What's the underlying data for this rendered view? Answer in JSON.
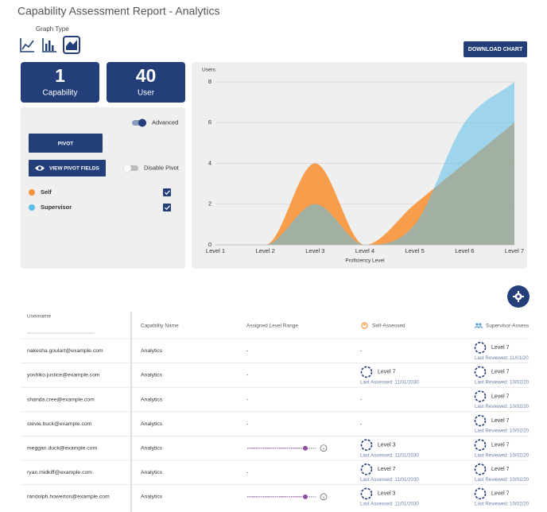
{
  "header": {
    "title": "Capability Assessment Report - Analytics",
    "graph_type_label": "Graph Type",
    "download_button": "DOWNLOAD CHART"
  },
  "stats": [
    {
      "value": 1,
      "label": "Capability"
    },
    {
      "value": 40,
      "label": "User"
    }
  ],
  "controls": {
    "advanced": "Advanced",
    "pivot": "PIVOT",
    "view_pivot_fields": "VIEW PIVOT FIELDS",
    "disable_pivot": "Disable Pivot"
  },
  "chart_data": {
    "type": "area",
    "y_label": "Users",
    "x_label": "Proficiency Level",
    "categories": [
      "Level 1",
      "Level 2",
      "Level 3",
      "Level 4",
      "Level 5",
      "Level 6",
      "Level 7"
    ],
    "series": [
      {
        "name": "Self",
        "color": "#f7943a",
        "values": [
          0,
          0,
          4,
          0,
          2,
          4,
          6
        ]
      },
      {
        "name": "Supervisor",
        "color": "#5bbfea",
        "values": [
          0,
          0,
          2,
          0,
          1,
          6,
          8
        ]
      }
    ],
    "ylim": [
      0,
      8
    ],
    "yticks": [
      0,
      2,
      4,
      6,
      8
    ],
    "grid": true
  },
  "table": {
    "columns": [
      "Username",
      "Capability Name",
      "Assigned Level Range",
      "Self-Assessed",
      "Supervisor-Assesse"
    ],
    "rows": [
      {
        "username": "nakesha.goulart@example.com",
        "capability": "Analytics",
        "range": "-",
        "self": "-",
        "supervisor": {
          "level": "Level 7",
          "date": "Last Reviewed: 11/01/20"
        }
      },
      {
        "username": "yoshiko.justice@example.com",
        "capability": "Analytics",
        "range": "-",
        "self": {
          "level": "Level 7",
          "date": "Last Assessed: 11/01/2030"
        },
        "supervisor": {
          "level": "Level 7",
          "date": "Last Reviewed: 10/02/20"
        }
      },
      {
        "username": "shanda.cree@example.com",
        "capability": "Analytics",
        "range": "-",
        "self": "-",
        "supervisor": {
          "level": "Level 7",
          "date": "Last Reviewed: 10/02/20"
        }
      },
      {
        "username": "stevie.buck@example.com",
        "capability": "Analytics",
        "range": "-",
        "self": "-",
        "supervisor": {
          "level": "Level 7",
          "date": "Last Reviewed: 10/02/20"
        }
      },
      {
        "username": "meggan.duck@example.com",
        "capability": "Analytics",
        "slider": true,
        "self": {
          "level": "Level 3",
          "date": "Last Assessed: 11/01/2030"
        },
        "supervisor": {
          "level": "Level 7",
          "date": "Last Reviewed: 10/02/20"
        }
      },
      {
        "username": "ryan.midkiff@example.com",
        "capability": "Analytics",
        "range": "-",
        "self": {
          "level": "Level 7",
          "date": "Last Assessed: 11/01/2030"
        },
        "supervisor": {
          "level": "Level 7",
          "date": "Last Reviewed: 10/02/20"
        }
      },
      {
        "username": "randolph.howerton@example.com",
        "capability": "Analytics",
        "slider": true,
        "self": {
          "level": "Level 3",
          "date": "Last Assessed: 11/01/2030"
        },
        "supervisor": {
          "level": "Level 7",
          "date": "Last Reviewed: 10/02/20"
        }
      }
    ]
  }
}
